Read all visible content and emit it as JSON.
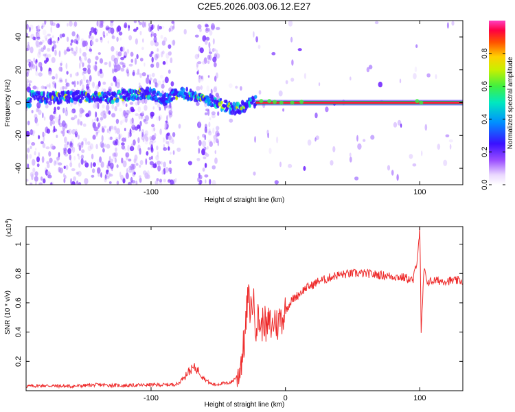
{
  "title": "C2E5.2026.003.06.12.E27",
  "chart_data": [
    {
      "type": "heatmap",
      "name": "spectrogram",
      "xlabel": "Height of straight line (km)",
      "ylabel": "Frequency (Hz)",
      "xlim": [
        -193,
        132
      ],
      "ylim": [
        -50,
        50
      ],
      "xticks": [
        -100,
        0,
        100
      ],
      "xtick_labels": [
        "-100",
        "",
        "100"
      ],
      "yticks": [
        -40,
        -20,
        0,
        20,
        40
      ],
      "ytick_labels": [
        "-40",
        "-20",
        "0",
        "20",
        "40"
      ],
      "colorbar": {
        "label": "Normalized spectral amplitude",
        "range": [
          0,
          1
        ],
        "ticks": [
          0.0,
          0.2,
          0.4,
          0.6,
          0.8
        ],
        "tick_labels": [
          "0.0",
          "0.2",
          "0.4",
          "0.6",
          "0.8"
        ]
      },
      "ridge": {
        "x": [
          -190,
          -170,
          -150,
          -130,
          -120,
          -110,
          -104,
          -98,
          -90,
          -84,
          -78,
          -72,
          -66,
          -60,
          -54,
          -48,
          -42,
          -36,
          -30,
          -25,
          -20,
          -15,
          -10,
          -5,
          0,
          10,
          20,
          40,
          60,
          80,
          98,
          100,
          110,
          132
        ],
        "freq": [
          4,
          3,
          4,
          3,
          5,
          5,
          6,
          5,
          2,
          4,
          6,
          5,
          4,
          3,
          1,
          -1,
          -3,
          -4,
          -2,
          0,
          1,
          1,
          1,
          0,
          0,
          0,
          0,
          0,
          0,
          0,
          1,
          0,
          0,
          0
        ]
      },
      "broadband_noise_ranges_km": [
        [
          -193,
          -83
        ],
        [
          -66,
          -50
        ]
      ],
      "strong_ridge_from_km": -22
    },
    {
      "type": "line",
      "name": "snr",
      "xlabel": "Height of straight line (km)",
      "ylabel": "SNR (10 * v/v)",
      "exponent_label": "(x10",
      "exponent_sup": "4",
      "exponent_close": ")",
      "xlim": [
        -193,
        132
      ],
      "ylim": [
        0,
        1.12
      ],
      "xticks": [
        -100,
        0,
        100
      ],
      "xtick_labels": [
        "-100",
        "0",
        "100"
      ],
      "yticks": [
        0.2,
        0.4,
        0.6,
        0.8,
        1.0
      ],
      "ytick_labels": [
        "0.2",
        "0.4",
        "0.6",
        "0.8",
        "1"
      ],
      "color": "#ee2a2a",
      "x": [
        -193,
        -180,
        -160,
        -140,
        -120,
        -100,
        -90,
        -80,
        -76,
        -72,
        -68,
        -64,
        -60,
        -56,
        -52,
        -48,
        -44,
        -40,
        -36,
        -34,
        -32,
        -30,
        -28,
        -26,
        -24,
        -22,
        -20,
        -18,
        -16,
        -14,
        -12,
        -10,
        -8,
        -6,
        -4,
        -2,
        0,
        5,
        10,
        15,
        20,
        25,
        30,
        35,
        40,
        50,
        60,
        70,
        80,
        90,
        95,
        98,
        100,
        101,
        103,
        106,
        110,
        120,
        132
      ],
      "y": [
        0.03,
        0.035,
        0.03,
        0.04,
        0.035,
        0.04,
        0.04,
        0.045,
        0.09,
        0.13,
        0.16,
        0.13,
        0.08,
        0.05,
        0.04,
        0.05,
        0.05,
        0.06,
        0.1,
        0.15,
        0.25,
        0.38,
        0.65,
        0.55,
        0.62,
        0.45,
        0.5,
        0.42,
        0.5,
        0.4,
        0.48,
        0.42,
        0.5,
        0.44,
        0.5,
        0.5,
        0.55,
        0.62,
        0.66,
        0.7,
        0.72,
        0.75,
        0.76,
        0.78,
        0.79,
        0.8,
        0.8,
        0.79,
        0.78,
        0.77,
        0.75,
        0.9,
        1.1,
        0.38,
        0.82,
        0.74,
        0.75,
        0.75,
        0.75
      ]
    }
  ]
}
